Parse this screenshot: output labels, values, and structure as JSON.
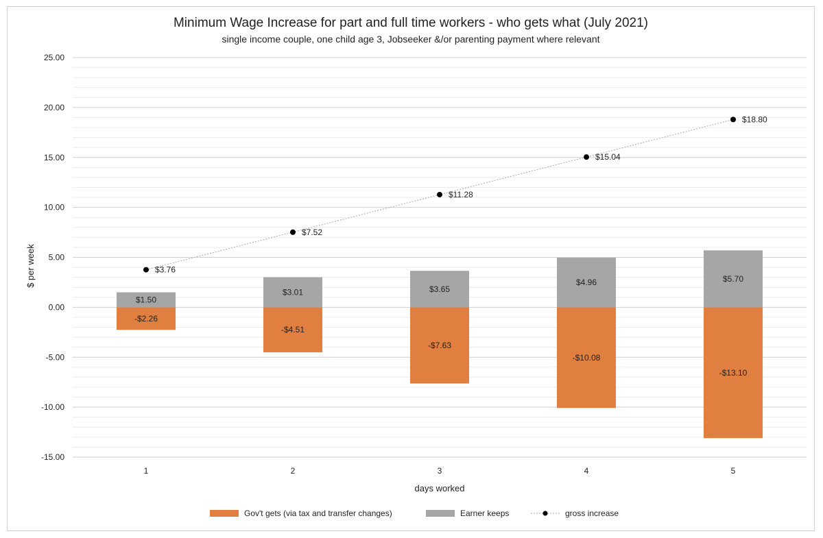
{
  "chart_data": {
    "type": "bar",
    "title": "Minimum Wage Increase for part and full time workers - who gets what (July 2021)",
    "subtitle": "single income couple, one child age 3, Jobseeker &/or parenting payment where relevant",
    "xlabel": "days worked",
    "ylabel": "$ per week",
    "categories": [
      "1",
      "2",
      "3",
      "4",
      "5"
    ],
    "ylim": [
      -15,
      25
    ],
    "yticks": [
      "25.00",
      "20.00",
      "15.00",
      "10.00",
      "5.00",
      "0.00",
      "-5.00",
      "-10.00",
      "-15.00"
    ],
    "stacked": true,
    "grid": true,
    "legend_position": "bottom",
    "series": [
      {
        "name": "Gov't gets (via tax and transfer changes)",
        "kind": "bar",
        "color": "#e07f3f",
        "values": [
          -2.26,
          -4.51,
          -7.63,
          -10.08,
          -13.1
        ],
        "labels": [
          "-$2.26",
          "-$4.51",
          "-$7.63",
          "-$10.08",
          "-$13.10"
        ]
      },
      {
        "name": "Earner keeps",
        "kind": "bar",
        "color": "#a6a6a6",
        "values": [
          1.5,
          3.01,
          3.65,
          4.96,
          5.7
        ],
        "labels": [
          "$1.50",
          "$3.01",
          "$3.65",
          "$4.96",
          "$5.70"
        ]
      },
      {
        "name": "gross increase",
        "kind": "line",
        "color": "#000000",
        "values": [
          3.76,
          7.52,
          11.28,
          15.04,
          18.8
        ],
        "labels": [
          "$3.76",
          "$7.52",
          "$11.28",
          "$15.04",
          "$18.80"
        ]
      }
    ]
  }
}
